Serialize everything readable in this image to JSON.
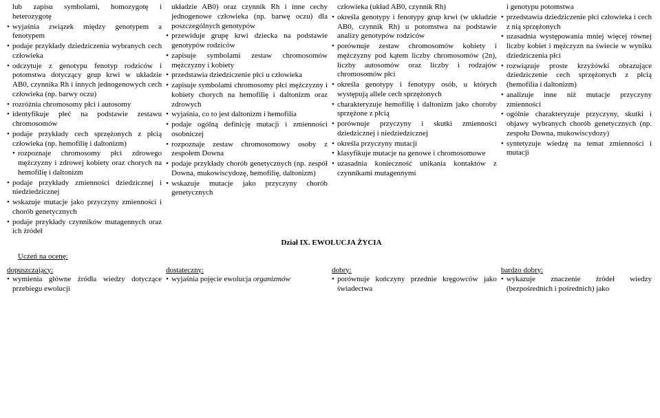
{
  "col1": {
    "pre": "lub zapisu symbolami, homozygotę i heterozygotę",
    "items": [
      "wyjaśnia związek między genotypem a fenotypem",
      "podaje przykłady dziedziczenia wybranych cech człowieka",
      "odczytuje z genotypu fenotyp rodziców i potomstwa dotyczący grup krwi w układzie AB0, czynnika Rh i innych jednogenowych cech człowieka (np. barwy oczu)",
      "rozróżnia chromosomy płci i autosomy",
      "identyfikuje płeć na podstawie zestawu chromosomów",
      "podaje przykłady cech sprzężonych z płcią człowieka (np. hemofilię i daltonizm)"
    ],
    "sub": "rozpoznaje chromosomy płci zdrowego mężczyzny i zdrowej kobiety oraz chorych na hemofilię i daltonizm",
    "items2": [
      "podaje przykłady zmienności dziedzicznej i niedziedzicznej",
      "wskazuje mutacje jako przyczyny zmienności i chorób genetycznych",
      "podaje przykłady czynników mutagennych oraz ich źródeł"
    ]
  },
  "col2": {
    "pre": "układzie AB0) oraz czynnik Rh i inne cechy jednogenowe człowieka (np. barwę oczu) dla poszczególnych genotypów",
    "items": [
      "przewiduje grupę krwi dziecka na podstawie genotypów rodziców",
      "zapisuje symbolami zestaw chromosomów mężczyzny i kobiety",
      "przedstawia dziedziczenie płci u człowieka",
      "zapisuje symbolami chromosomy płci mężczyzny i kobiety chorych na hemofilię i daltonizm oraz zdrowych",
      "wyjaśnia, co to jest daltonizm i hemofilia",
      "podaje ogólną definicję mutacji i zmienności osobniczej",
      "rozpoznaje zestaw chromosomowy osoby z zespołem Downa",
      "podaje przykłady chorób genetycznych (np. zespół Downa, mukowiscydozę, hemofilię, daltonizm)",
      "wskazuje mutacje jako przyczyny chorób genetycznych"
    ]
  },
  "col3": {
    "pre": "człowieka (układ AB0, czynnik Rh)",
    "items": [
      "określa genotypy i fenotypy grup krwi (w układzie AB0, czynnik Rh) u potomstwa na podstawie analizy genotypów rodziców",
      "porównuje zestaw chromosomów kobiety i mężczyzny pod kątem liczby chromosomów (2n), liczby autosomów oraz liczby i rodzajów chromosomów płci",
      "określa genotypy i fenotypy osób, u których występują allele cech sprzężonych",
      "charakteryzuje hemofilię i daltonizm jako choroby sprzężone z płcią",
      "porównuje przyczyny i skutki zmienności dziedzicznej i niedziedzicznej",
      "określa przyczyny mutacji",
      "klasyfikuje mutacje na genowe i chromosomowe",
      "uzasadnia konieczność unikania kontaktów z czynnikami mutagennymi"
    ]
  },
  "col4": {
    "pre": "i genotypu potomstwa",
    "items": [
      "przedstawia dziedziczenie płci człowieka i cech z nią sprzężonych",
      "uzasadnia występowania mniej więcej równej liczby kobiet i mężczyzn na świecie w wyniku dziedziczenia płci",
      "rozwiązuje proste krzyżówki obrazujące dziedziczenie cech sprzężonych z płcią (hemofilia i daltonizm)",
      "analizuje inne niż mutacje przyczyny zmienności",
      "ogólnie charakteryzuje przyczyny, skutki i objawy wybranych chorób genetycznych (np. zespołu Downa, mukowiscydozy)",
      "syntetyzuje wiedzę na temat zmienności i mutacji"
    ]
  },
  "section": "Dział IX. EWOLUCJA ŻYCIA",
  "uczen": "Uczeń na ocenę:",
  "row": {
    "h1": "dopuszczający:",
    "h2": "dostateczny:",
    "h3": "dobry:",
    "h4": "bardzo dobry:",
    "c1": [
      "wymienia główne źródła wiedzy dotyczące przebiegu ewolucji"
    ],
    "c2_a": "wyjaśnia pojęcie ewolucja ",
    "c2_b": "organizmów",
    "c3": [
      "porównuje kończyny przednie kręgowców jako świadectwa"
    ],
    "c4": [
      "wykazuje znaczenie źródeł wiedzy (bezpośrednich i pośrednich) jako"
    ]
  }
}
